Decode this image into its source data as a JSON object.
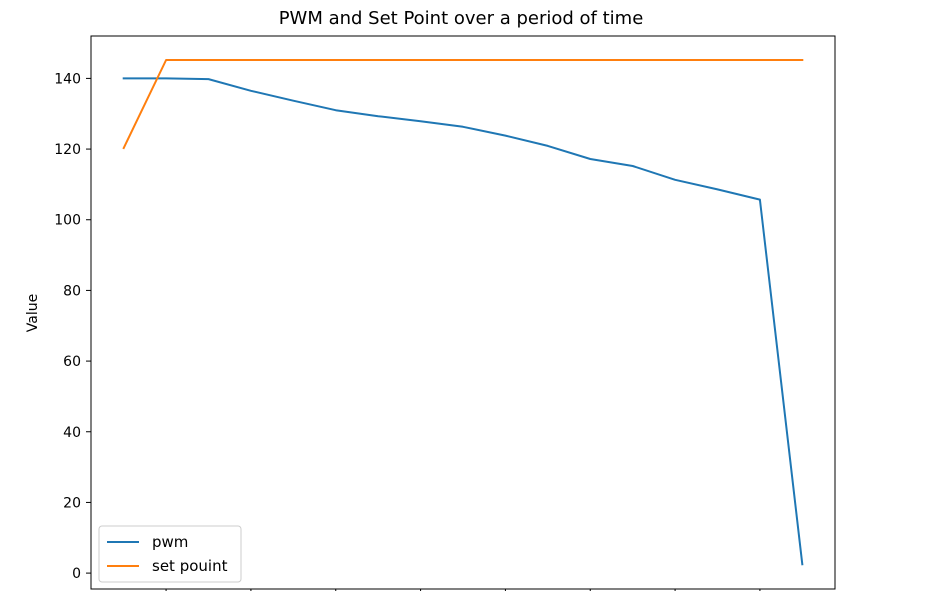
{
  "chart_data": {
    "type": "line",
    "title": "PWM and Set Point over a period of time",
    "xlabel": "",
    "ylabel": "Value",
    "x": [
      0,
      1,
      2,
      3,
      4,
      5,
      6,
      7,
      8,
      9,
      10,
      11,
      12,
      13,
      14,
      15,
      16
    ],
    "xlim": [
      -0.77,
      16.77
    ],
    "ylim": [
      -4.5,
      152
    ],
    "yticks": [
      0,
      20,
      40,
      60,
      80,
      100,
      120,
      140
    ],
    "xticks": [
      1,
      3,
      5,
      7,
      9,
      11,
      13,
      15
    ],
    "grid": false,
    "legend_position": "lower-left",
    "series": [
      {
        "name": "pwm",
        "color": "#1f77b4",
        "values": [
          140,
          140,
          139.8,
          136.5,
          133.7,
          131,
          129.3,
          127.9,
          126.3,
          123.8,
          120.9,
          117.2,
          115.2,
          111.3,
          108.6,
          105.7,
          2.5
        ]
      },
      {
        "name": "set pouint",
        "color": "#ff7f0e",
        "values": [
          120.3,
          145.2,
          145.2,
          145.2,
          145.2,
          145.2,
          145.2,
          145.2,
          145.2,
          145.2,
          145.2,
          145.2,
          145.2,
          145.2,
          145.2,
          145.2,
          145.2
        ]
      }
    ]
  }
}
